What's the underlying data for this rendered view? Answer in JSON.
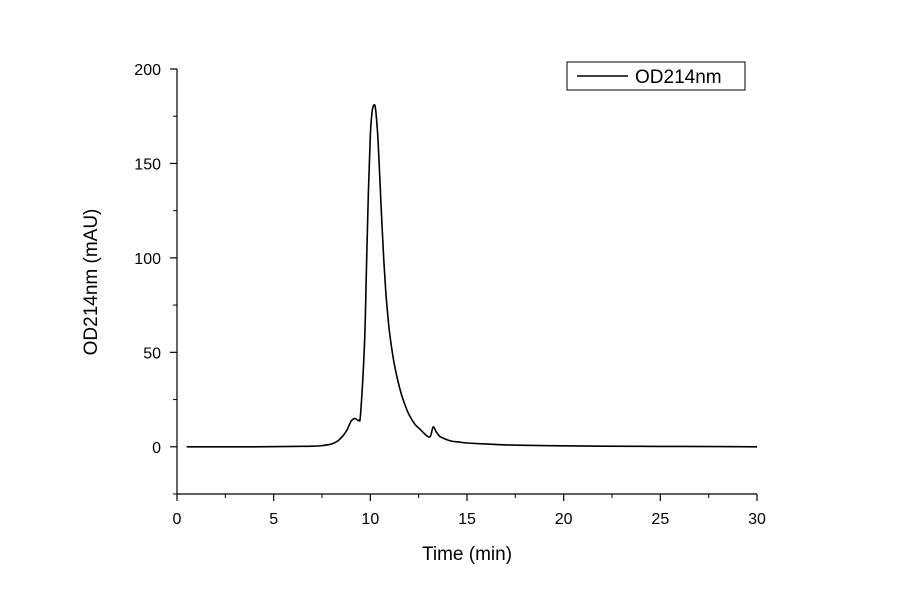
{
  "chart_data": {
    "type": "line",
    "title": "",
    "xlabel": "Time (min)",
    "ylabel": "OD214nm (mAU)",
    "xlim": [
      0,
      30
    ],
    "ylim": [
      -25,
      200
    ],
    "xticks": [
      0,
      5,
      10,
      15,
      20,
      25,
      30
    ],
    "xtick_labels": [
      "0",
      "5",
      "10",
      "15",
      "20",
      "25",
      "30"
    ],
    "yticks": [
      0,
      50,
      100,
      150,
      200
    ],
    "ytick_labels": [
      "0",
      "50",
      "100",
      "150",
      "200"
    ],
    "grid": false,
    "legend": {
      "position": "top-right",
      "entries": [
        "OD214nm"
      ]
    },
    "series": [
      {
        "name": "OD214nm",
        "color": "#000000",
        "x": [
          0.5,
          2,
          4,
          6,
          7,
          7.5,
          8,
          8.3,
          8.6,
          8.8,
          9.0,
          9.2,
          9.4,
          9.5,
          9.7,
          9.8,
          9.9,
          10.0,
          10.1,
          10.2,
          10.25,
          10.3,
          10.4,
          10.5,
          10.6,
          10.7,
          10.8,
          10.9,
          11.0,
          11.2,
          11.4,
          11.6,
          11.8,
          12.0,
          12.3,
          12.6,
          12.9,
          13.1,
          13.25,
          13.4,
          13.6,
          13.9,
          14.2,
          14.6,
          15.0,
          16.0,
          17.0,
          18.0,
          20.0,
          22.0,
          25.0,
          28.0,
          30.0
        ],
        "y": [
          0,
          0,
          0,
          0.2,
          0.3,
          0.6,
          1.5,
          3,
          6,
          9,
          13.5,
          15,
          14,
          18,
          55,
          95,
          135,
          165,
          178,
          181,
          180,
          176,
          162,
          140,
          118,
          98,
          82,
          70,
          60,
          46,
          36,
          28,
          22,
          17,
          12,
          9,
          6,
          5.5,
          10.5,
          8,
          5.5,
          4,
          3,
          2.5,
          2,
          1.5,
          1,
          0.8,
          0.5,
          0.3,
          0.2,
          0.1,
          0
        ]
      }
    ]
  }
}
